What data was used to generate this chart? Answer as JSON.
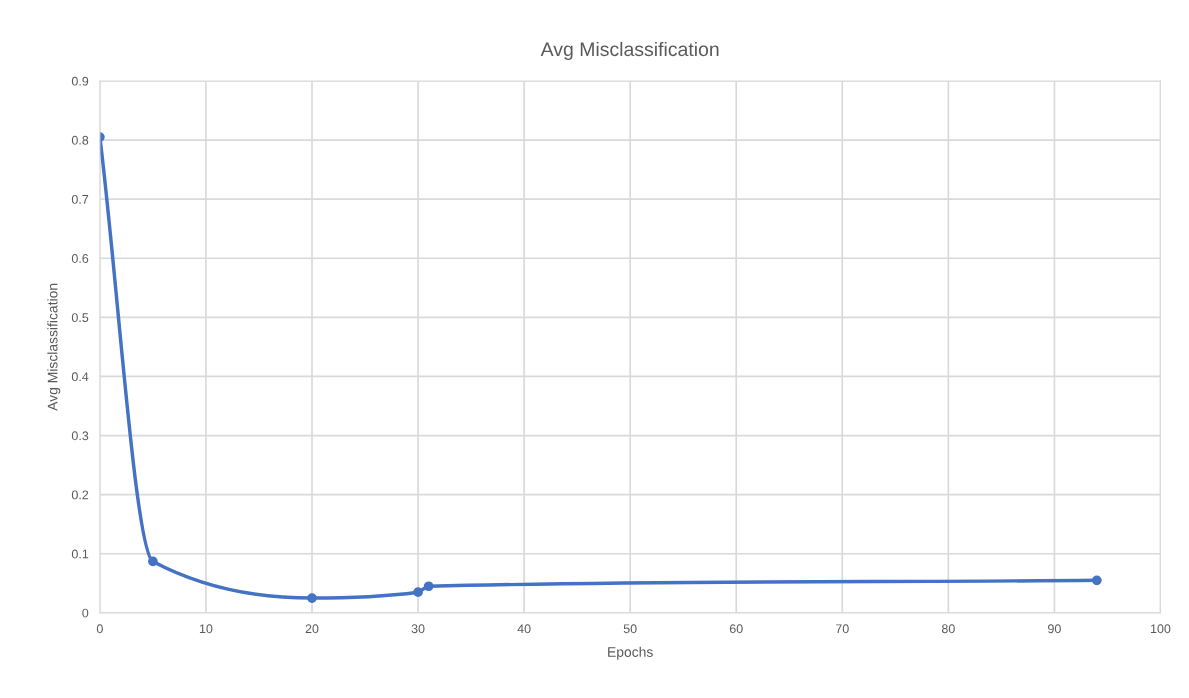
{
  "chart_data": {
    "type": "line",
    "title": "Avg Misclassification",
    "xlabel": "Epochs",
    "ylabel": "Avg Misclassification",
    "x": [
      0,
      5,
      20,
      30,
      31,
      94
    ],
    "series": [
      {
        "color": "#4472c4",
        "values": [
          0.805,
          0.087,
          0.025,
          0.035,
          0.045,
          0.055
        ]
      }
    ],
    "xlim": [
      0,
      100
    ],
    "xticks": [
      0,
      10,
      20,
      30,
      40,
      50,
      60,
      70,
      80,
      90,
      100
    ],
    "ylim": [
      0,
      0.9
    ],
    "yticks": [
      0,
      0.1,
      0.2,
      0.3,
      0.4,
      0.5,
      0.6,
      0.7,
      0.8,
      0.9
    ],
    "grid": true,
    "marker": "circle",
    "line_style": "solid"
  }
}
